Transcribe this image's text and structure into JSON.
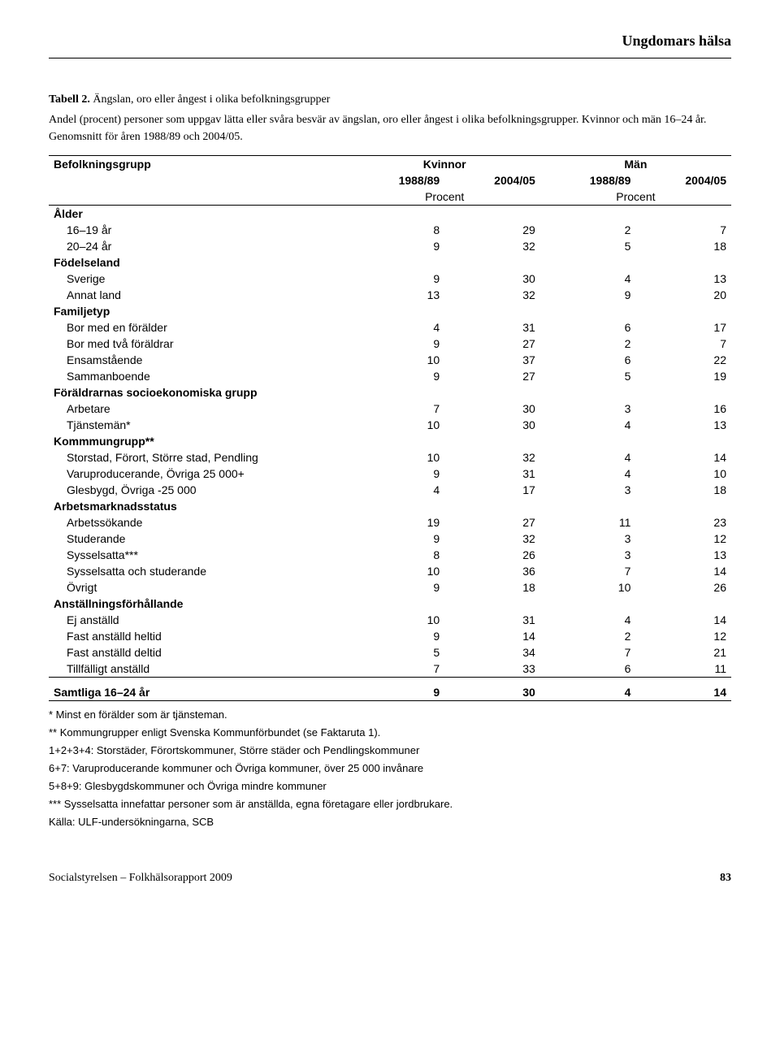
{
  "header": {
    "running_title": "Ungdomars hälsa"
  },
  "caption": {
    "number": "Tabell 2.",
    "title": "Ängslan, oro eller ångest i olika befolkningsgrupper",
    "subtitle": "Andel (procent) personer som uppgav lätta eller svåra besvär av ängslan, oro eller ångest i olika befolkningsgrupper. Kvinnor och män 16–24 år. Genomsnitt för åren 1988/89 och 2004/05."
  },
  "table": {
    "col_group_label": "Befolkningsgrupp",
    "groups": [
      "Kvinnor",
      "Män"
    ],
    "years": [
      "1988/89",
      "2004/05",
      "1988/89",
      "2004/05"
    ],
    "unit": "Procent",
    "sections": [
      {
        "heading": "Ålder",
        "rows": [
          {
            "label": "16–19 år",
            "v": [
              8,
              29,
              2,
              7
            ]
          },
          {
            "label": "20–24 år",
            "v": [
              9,
              32,
              5,
              18
            ]
          }
        ]
      },
      {
        "heading": "Födelseland",
        "rows": [
          {
            "label": "Sverige",
            "v": [
              9,
              30,
              4,
              13
            ]
          },
          {
            "label": "Annat land",
            "v": [
              13,
              32,
              9,
              20
            ]
          }
        ]
      },
      {
        "heading": "Familjetyp",
        "rows": [
          {
            "label": "Bor med en förälder",
            "v": [
              4,
              31,
              6,
              17
            ]
          },
          {
            "label": "Bor med två föräldrar",
            "v": [
              9,
              27,
              2,
              7
            ]
          },
          {
            "label": "Ensamstående",
            "v": [
              10,
              37,
              6,
              22
            ]
          },
          {
            "label": "Sammanboende",
            "v": [
              9,
              27,
              5,
              19
            ]
          }
        ]
      },
      {
        "heading": "Föräldrarnas socioekonomiska grupp",
        "rows": [
          {
            "label": "Arbetare",
            "v": [
              7,
              30,
              3,
              16
            ]
          },
          {
            "label": "Tjänstemän*",
            "v": [
              10,
              30,
              4,
              13
            ]
          }
        ]
      },
      {
        "heading": "Kommmungrupp**",
        "rows": [
          {
            "label": "Storstad, Förort, Större stad, Pendling",
            "v": [
              10,
              32,
              4,
              14
            ]
          },
          {
            "label": "Varuproducerande, Övriga 25 000+",
            "v": [
              9,
              31,
              4,
              10
            ]
          },
          {
            "label": "Glesbygd, Övriga -25 000",
            "v": [
              4,
              17,
              3,
              18
            ]
          }
        ]
      },
      {
        "heading": "Arbetsmarknadsstatus",
        "rows": [
          {
            "label": "Arbetssökande",
            "v": [
              19,
              27,
              11,
              23
            ]
          },
          {
            "label": "Studerande",
            "v": [
              9,
              32,
              3,
              12
            ]
          },
          {
            "label": "Sysselsatta***",
            "v": [
              8,
              26,
              3,
              13
            ]
          },
          {
            "label": "Sysselsatta och studerande",
            "v": [
              10,
              36,
              7,
              14
            ]
          },
          {
            "label": "Övrigt",
            "v": [
              9,
              18,
              10,
              26
            ]
          }
        ]
      },
      {
        "heading": "Anställningsförhållande",
        "rows": [
          {
            "label": "Ej anställd",
            "v": [
              10,
              31,
              4,
              14
            ]
          },
          {
            "label": "Fast anställd heltid",
            "v": [
              9,
              14,
              2,
              12
            ]
          },
          {
            "label": "Fast anställd deltid",
            "v": [
              5,
              34,
              7,
              21
            ]
          },
          {
            "label": "Tillfälligt anställd",
            "v": [
              7,
              33,
              6,
              11
            ]
          }
        ]
      }
    ],
    "total": {
      "label": "Samtliga 16–24 år",
      "v": [
        9,
        30,
        4,
        14
      ]
    }
  },
  "footnotes": [
    "* Minst en förälder som är tjänsteman.",
    "** Kommungrupper enligt Svenska Kommunförbundet (se Faktaruta 1).",
    "1+2+3+4: Storstäder, Förortskommuner, Större städer och Pendlingskommuner",
    "6+7: Varuproducerande kommuner och Övriga kommuner, över 25 000 invånare",
    "5+8+9: Glesbygdskommuner och Övriga mindre kommuner",
    "*** Sysselsatta innefattar personer som är anställda, egna företagare eller jordbrukare.",
    "Källa: ULF-undersökningarna, SCB"
  ],
  "footer": {
    "source": "Socialstyrelsen – Folkhälsorapport 2009",
    "page": "83"
  }
}
